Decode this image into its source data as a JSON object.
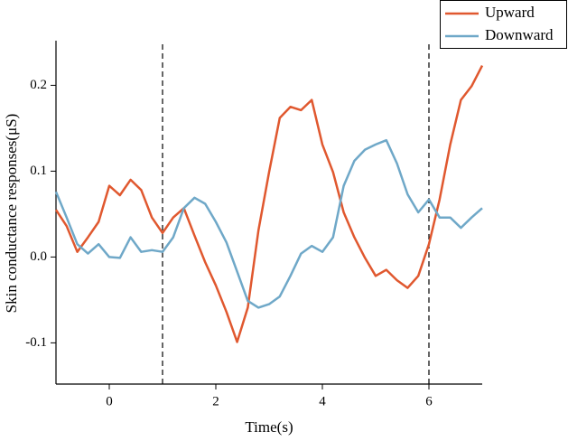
{
  "chart_data": {
    "type": "line",
    "x_label": "Time(s)",
    "y_label": "Skin conductance responses(μS)",
    "x": [
      -1,
      -0.8,
      -0.6,
      -0.4,
      -0.2,
      0,
      0.2,
      0.4,
      0.6,
      0.8,
      1,
      1.2,
      1.4,
      1.6,
      1.8,
      2,
      2.2,
      2.4,
      2.6,
      2.8,
      3,
      3.2,
      3.4,
      3.6,
      3.8,
      4,
      4.2,
      4.4,
      4.6,
      4.8,
      5,
      5.2,
      5.4,
      5.6,
      5.8,
      6,
      6.2,
      6.4,
      6.6,
      6.8,
      7
    ],
    "series": [
      {
        "name": "Upward",
        "color": "#e0582f",
        "values": [
          0.055,
          0.036,
          0.006,
          0.023,
          0.041,
          0.083,
          0.072,
          0.09,
          0.078,
          0.046,
          0.028,
          0.046,
          0.057,
          0.025,
          -0.006,
          -0.033,
          -0.064,
          -0.099,
          -0.059,
          0.031,
          0.099,
          0.162,
          0.175,
          0.171,
          0.183,
          0.131,
          0.099,
          0.052,
          0.023,
          -0.001,
          -0.022,
          -0.015,
          -0.027,
          -0.036,
          -0.022,
          0.015,
          0.067,
          0.131,
          0.183,
          0.199,
          0.223
        ]
      },
      {
        "name": "Downward",
        "color": "#6fa8c8",
        "values": [
          0.076,
          0.046,
          0.015,
          0.004,
          0.015,
          0.0,
          -0.001,
          0.023,
          0.006,
          0.008,
          0.006,
          0.023,
          0.057,
          0.069,
          0.062,
          0.041,
          0.017,
          -0.017,
          -0.051,
          -0.059,
          -0.055,
          -0.046,
          -0.022,
          0.004,
          0.013,
          0.006,
          0.023,
          0.083,
          0.112,
          0.125,
          0.131,
          0.136,
          0.109,
          0.073,
          0.052,
          0.067,
          0.046,
          0.046,
          0.034,
          0.046,
          0.057
        ]
      }
    ],
    "xlim": [
      -1,
      7
    ],
    "xticks": [
      0,
      2,
      4,
      6
    ],
    "ylim": [
      -0.148,
      0.252
    ],
    "yticks": [
      -0.1,
      {
        "value": 0,
        "label": "0.0"
      },
      0.1,
      0.2
    ],
    "vlines": [
      1,
      6
    ],
    "legend": "top-right"
  }
}
